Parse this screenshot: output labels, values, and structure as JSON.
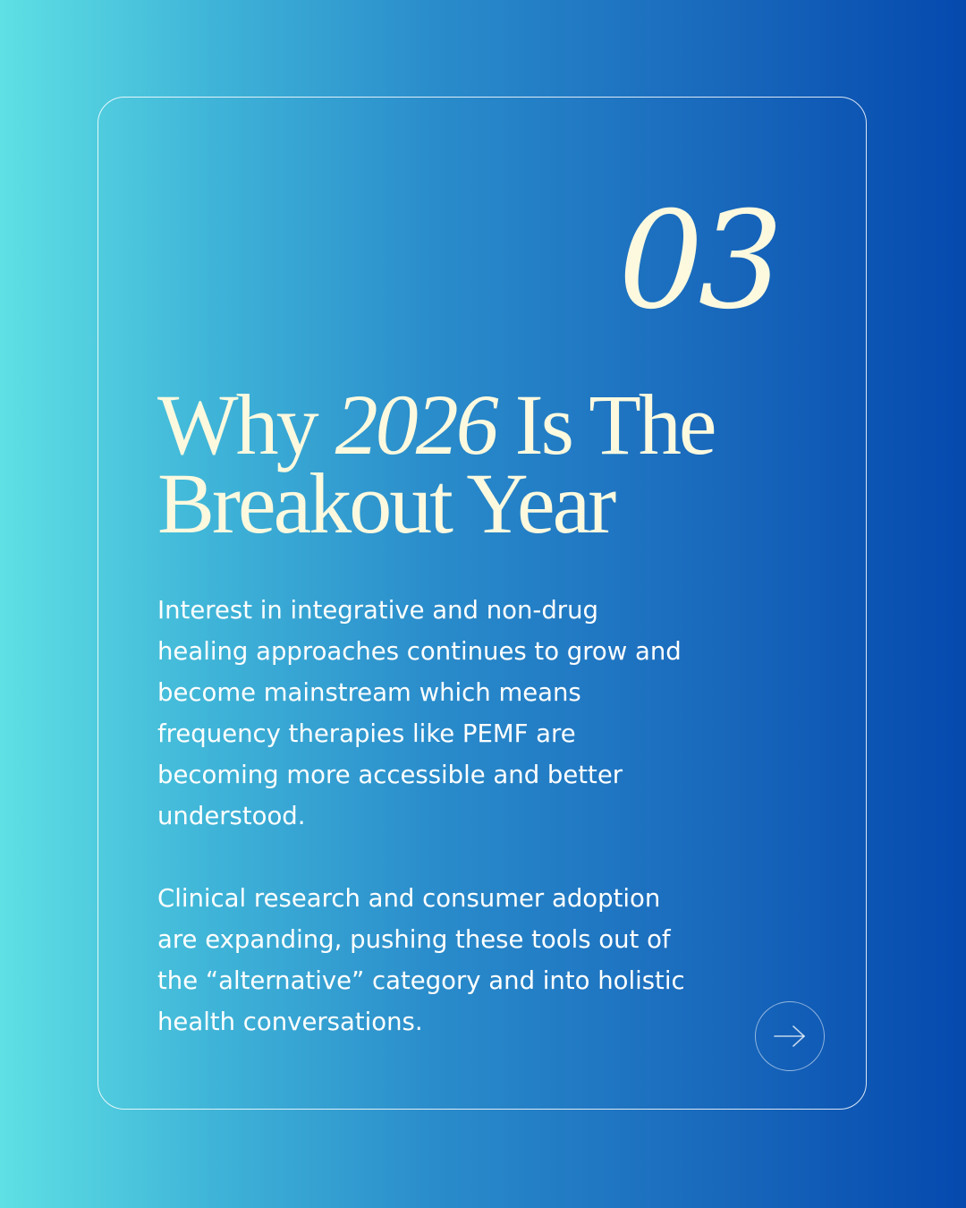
{
  "slide": {
    "number": "03",
    "title_part1": "Why ",
    "title_italic": "2026",
    "title_part2": " Is The Breakout Year",
    "paragraphs": [
      "Interest in integrative and non-drug\nhealing approaches continues to grow and\nbecome mainstream which means\nfrequency therapies like PEMF are\nbecoming more accessible and better\nunderstood.",
      " Clinical research and consumer adoption\nare expanding, pushing these tools out of\nthe “alternative” category and into holistic\nhealth conversations."
    ]
  },
  "icons": {
    "next": "arrow-right-icon"
  },
  "colors": {
    "gradient_start": "#5ee0e4",
    "gradient_end": "#0549ae",
    "title": "#fcf9df",
    "body_text": "#ffffff"
  }
}
